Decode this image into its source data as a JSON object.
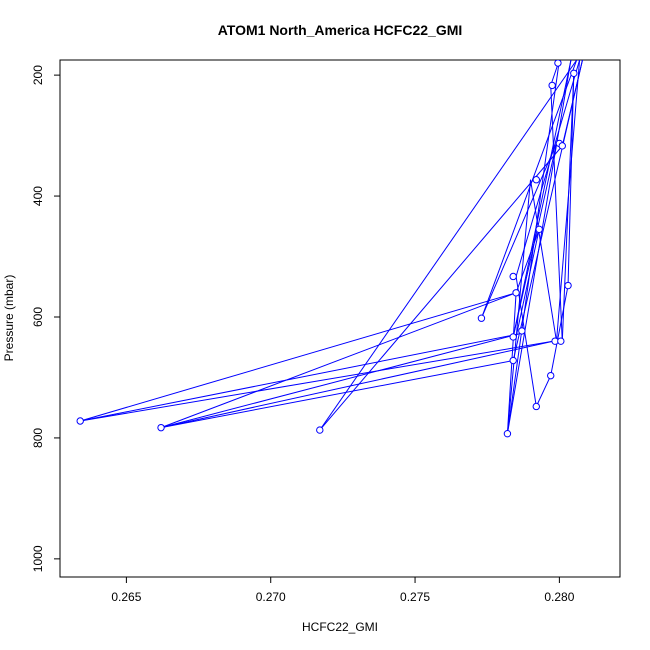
{
  "chart_data": {
    "type": "line",
    "title": "ATOM1 North_America HCFC22_GMI",
    "xlabel": "HCFC22_GMI",
    "ylabel": "Pressure (mbar)",
    "xlim": [
      0.2627,
      0.2821
    ],
    "ylim": [
      1030,
      175
    ],
    "y_reversed": true,
    "x_ticks": [
      0.265,
      0.27,
      0.275,
      0.28
    ],
    "x_tick_labels": [
      "0.265",
      "0.270",
      "0.275",
      "0.280"
    ],
    "y_ticks": [
      200,
      400,
      600,
      800,
      1000
    ],
    "y_tick_labels": [
      "200",
      "400",
      "600",
      "800",
      "1000"
    ],
    "grid": false,
    "legend": "none",
    "series": [
      {
        "color": "#0000ff",
        "marker": "open-circle",
        "points": [
          {
            "x": 0.27995,
            "y": 180
          },
          {
            "x": 0.27975,
            "y": 217
          },
          {
            "x": 0.2805,
            "y": 197
          },
          {
            "x": 0.28,
            "y": 313
          },
          {
            "x": 0.2801,
            "y": 317
          },
          {
            "x": 0.2792,
            "y": 373
          },
          {
            "x": 0.2793,
            "y": 455
          },
          {
            "x": 0.2784,
            "y": 533
          },
          {
            "x": 0.2803,
            "y": 548
          },
          {
            "x": 0.2785,
            "y": 560
          },
          {
            "x": 0.2773,
            "y": 602
          },
          {
            "x": 0.2787,
            "y": 623
          },
          {
            "x": 0.2784,
            "y": 633
          },
          {
            "x": 0.27985,
            "y": 640
          },
          {
            "x": 0.28005,
            "y": 640
          },
          {
            "x": 0.2784,
            "y": 672
          },
          {
            "x": 0.2797,
            "y": 697
          },
          {
            "x": 0.2792,
            "y": 748
          },
          {
            "x": 0.2634,
            "y": 772
          },
          {
            "x": 0.2662,
            "y": 783
          },
          {
            "x": 0.2717,
            "y": 787
          },
          {
            "x": 0.2782,
            "y": 793
          }
        ],
        "path": [
          {
            "x": 0.2634,
            "y": 772
          },
          {
            "x": 0.2785,
            "y": 560
          },
          {
            "x": 0.2662,
            "y": 783
          },
          {
            "x": 0.2798,
            "y": 640
          },
          {
            "x": 0.2634,
            "y": 772
          },
          {
            "x": 0.2786,
            "y": 628
          },
          {
            "x": 0.2662,
            "y": 783
          },
          {
            "x": 0.2784,
            "y": 672
          },
          {
            "x": 0.2808,
            "y": 175
          },
          {
            "x": 0.2801,
            "y": 317
          },
          {
            "x": 0.2717,
            "y": 787
          },
          {
            "x": 0.2806,
            "y": 175
          },
          {
            "x": 0.2773,
            "y": 602
          },
          {
            "x": 0.2799,
            "y": 313
          },
          {
            "x": 0.2784,
            "y": 633
          },
          {
            "x": 0.2804,
            "y": 175
          },
          {
            "x": 0.2782,
            "y": 793
          },
          {
            "x": 0.279,
            "y": 373
          },
          {
            "x": 0.2799,
            "y": 640
          },
          {
            "x": 0.2807,
            "y": 175
          },
          {
            "x": 0.2785,
            "y": 533
          },
          {
            "x": 0.2792,
            "y": 748
          },
          {
            "x": 0.2797,
            "y": 697
          },
          {
            "x": 0.2803,
            "y": 548
          },
          {
            "x": 0.2805,
            "y": 197
          },
          {
            "x": 0.2801,
            "y": 640
          },
          {
            "x": 0.2797,
            "y": 217
          },
          {
            "x": 0.28,
            "y": 175
          },
          {
            "x": 0.2782,
            "y": 793
          },
          {
            "x": 0.2785,
            "y": 560
          },
          {
            "x": 0.2793,
            "y": 455
          },
          {
            "x": 0.2785,
            "y": 633
          }
        ]
      }
    ]
  }
}
